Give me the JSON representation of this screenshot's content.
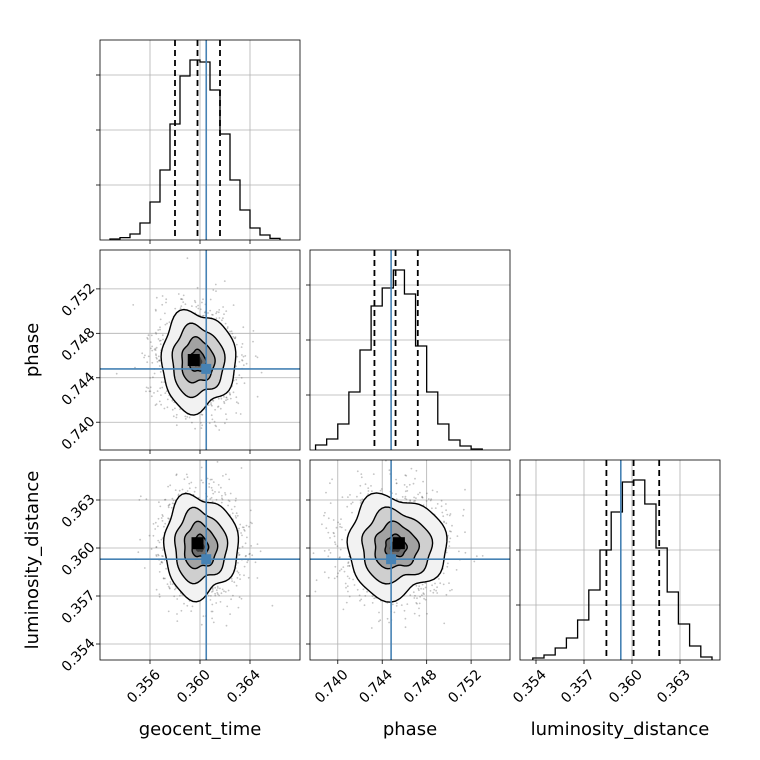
{
  "figure": {
    "type": "corner-plot",
    "truth_color": "#4682b4",
    "line_color": "#000000"
  },
  "chart_data": [
    {
      "type": "bar",
      "panel": "geocent_time-histogram",
      "parameter": "geocent_time",
      "xlim": [
        0.352,
        0.368
      ],
      "ylim": [
        0,
        1.0
      ],
      "x_ticks": [
        0.356,
        0.36,
        0.364
      ],
      "x_tick_labels": [
        "0.356",
        "0.360",
        "0.364"
      ],
      "bin_edges": [
        0.3528,
        0.3536,
        0.3544,
        0.3552,
        0.356,
        0.3568,
        0.3576,
        0.3584,
        0.3592,
        0.36,
        0.3608,
        0.3616,
        0.3624,
        0.3632,
        0.364,
        0.3648,
        0.3656,
        0.3664
      ],
      "counts": [
        0.005,
        0.012,
        0.03,
        0.085,
        0.19,
        0.35,
        0.58,
        0.82,
        0.9,
        0.89,
        0.75,
        0.53,
        0.3,
        0.15,
        0.06,
        0.025,
        0.008
      ],
      "quantiles": [
        0.358,
        0.3598,
        0.3616
      ],
      "truth": 0.3605
    },
    {
      "type": "bar",
      "panel": "phase-histogram",
      "parameter": "phase",
      "xlim": [
        0.7375,
        0.7555
      ],
      "ylim": [
        0,
        1.0
      ],
      "bin_edges": [
        0.738,
        0.739,
        0.74,
        0.741,
        0.742,
        0.743,
        0.744,
        0.745,
        0.746,
        0.747,
        0.748,
        0.749,
        0.75,
        0.751,
        0.752,
        0.753
      ],
      "counts": [
        0.025,
        0.055,
        0.13,
        0.29,
        0.5,
        0.72,
        0.81,
        0.9,
        0.78,
        0.52,
        0.29,
        0.13,
        0.05,
        0.02,
        0.005
      ],
      "quantiles": [
        0.7433,
        0.7452,
        0.7472
      ],
      "truth": 0.7448
    },
    {
      "type": "bar",
      "panel": "luminosity_distance-histogram",
      "parameter": "luminosity_distance",
      "xlim": [
        0.353,
        0.3655
      ],
      "ylim": [
        0,
        1.0
      ],
      "x_ticks": [
        0.354,
        0.357,
        0.36,
        0.363
      ],
      "x_tick_labels": [
        "0.354",
        "0.357",
        "0.360",
        "0.363"
      ],
      "bin_edges": [
        0.3538,
        0.3545,
        0.3552,
        0.3559,
        0.3566,
        0.3573,
        0.358,
        0.3587,
        0.3594,
        0.3601,
        0.3608,
        0.3615,
        0.3622,
        0.3629,
        0.3636,
        0.3643,
        0.365
      ],
      "counts": [
        0.01,
        0.025,
        0.06,
        0.11,
        0.2,
        0.35,
        0.55,
        0.74,
        0.89,
        0.9,
        0.78,
        0.56,
        0.34,
        0.18,
        0.07,
        0.015
      ],
      "quantiles": [
        0.3584,
        0.3601,
        0.3617
      ],
      "truth": 0.3593
    },
    {
      "type": "scatter",
      "panel": "phase-vs-geocent_time",
      "x_parameter": "geocent_time",
      "y_parameter": "phase",
      "xlim": [
        0.352,
        0.368
      ],
      "ylim": [
        0.7375,
        0.7555
      ],
      "y_ticks": [
        0.74,
        0.744,
        0.748,
        0.752
      ],
      "y_tick_labels": [
        "0.740",
        "0.744",
        "0.748",
        "0.752"
      ],
      "ylabel": "phase",
      "center": [
        0.3598,
        0.7455
      ],
      "sigma": [
        0.0016,
        0.0024
      ],
      "density_levels": [
        0.4,
        0.82,
        1.3,
        1.85
      ],
      "mode_marker": [
        0.3595,
        0.7456
      ],
      "truth": [
        0.3605,
        0.7448
      ]
    },
    {
      "type": "scatter",
      "panel": "luminosity_distance-vs-geocent_time",
      "x_parameter": "geocent_time",
      "y_parameter": "luminosity_distance",
      "xlim": [
        0.352,
        0.368
      ],
      "ylim": [
        0.353,
        0.3655
      ],
      "y_ticks": [
        0.354,
        0.357,
        0.36,
        0.363
      ],
      "y_tick_labels": [
        "0.354",
        "0.357",
        "0.360",
        "0.363"
      ],
      "xlabel": "geocent_time",
      "ylabel": "luminosity_distance",
      "center": [
        0.36,
        0.3601
      ],
      "sigma": [
        0.0016,
        0.0017
      ],
      "density_levels": [
        0.4,
        0.82,
        1.3,
        1.85
      ],
      "mode_marker": [
        0.3598,
        0.3603
      ],
      "truth": [
        0.3605,
        0.3593
      ]
    },
    {
      "type": "scatter",
      "panel": "luminosity_distance-vs-phase",
      "x_parameter": "phase",
      "y_parameter": "luminosity_distance",
      "xlim": [
        0.7375,
        0.7555
      ],
      "ylim": [
        0.353,
        0.3655
      ],
      "x_ticks": [
        0.74,
        0.744,
        0.748,
        0.752
      ],
      "x_tick_labels": [
        "0.740",
        "0.744",
        "0.748",
        "0.752"
      ],
      "xlabel": "phase",
      "center": [
        0.7452,
        0.3601
      ],
      "sigma": [
        0.0024,
        0.0017
      ],
      "density_levels": [
        0.4,
        0.82,
        1.3,
        1.85
      ],
      "mode_marker": [
        0.7455,
        0.3603
      ],
      "truth": [
        0.7448,
        0.3593
      ]
    }
  ]
}
